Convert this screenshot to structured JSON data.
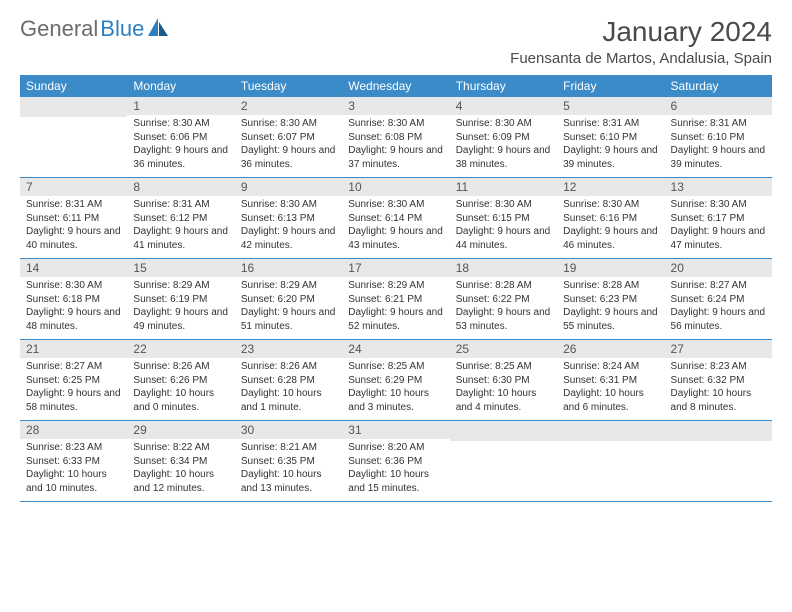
{
  "brand": {
    "part1": "General",
    "part2": "Blue"
  },
  "title": "January 2024",
  "location": "Fuensanta de Martos, Andalusia, Spain",
  "colors": {
    "header_bg": "#3b8bc9",
    "header_text": "#ffffff",
    "daynum_bg": "#e8e8e8",
    "row_border": "#3b8bc9",
    "logo_gray": "#6b6b6b",
    "logo_blue": "#2d7fc1"
  },
  "days_of_week": [
    "Sunday",
    "Monday",
    "Tuesday",
    "Wednesday",
    "Thursday",
    "Friday",
    "Saturday"
  ],
  "weeks": [
    [
      {
        "n": "",
        "lines": []
      },
      {
        "n": "1",
        "lines": [
          "Sunrise: 8:30 AM",
          "Sunset: 6:06 PM",
          "Daylight: 9 hours and 36 minutes."
        ]
      },
      {
        "n": "2",
        "lines": [
          "Sunrise: 8:30 AM",
          "Sunset: 6:07 PM",
          "Daylight: 9 hours and 36 minutes."
        ]
      },
      {
        "n": "3",
        "lines": [
          "Sunrise: 8:30 AM",
          "Sunset: 6:08 PM",
          "Daylight: 9 hours and 37 minutes."
        ]
      },
      {
        "n": "4",
        "lines": [
          "Sunrise: 8:30 AM",
          "Sunset: 6:09 PM",
          "Daylight: 9 hours and 38 minutes."
        ]
      },
      {
        "n": "5",
        "lines": [
          "Sunrise: 8:31 AM",
          "Sunset: 6:10 PM",
          "Daylight: 9 hours and 39 minutes."
        ]
      },
      {
        "n": "6",
        "lines": [
          "Sunrise: 8:31 AM",
          "Sunset: 6:10 PM",
          "Daylight: 9 hours and 39 minutes."
        ]
      }
    ],
    [
      {
        "n": "7",
        "lines": [
          "Sunrise: 8:31 AM",
          "Sunset: 6:11 PM",
          "Daylight: 9 hours and 40 minutes."
        ]
      },
      {
        "n": "8",
        "lines": [
          "Sunrise: 8:31 AM",
          "Sunset: 6:12 PM",
          "Daylight: 9 hours and 41 minutes."
        ]
      },
      {
        "n": "9",
        "lines": [
          "Sunrise: 8:30 AM",
          "Sunset: 6:13 PM",
          "Daylight: 9 hours and 42 minutes."
        ]
      },
      {
        "n": "10",
        "lines": [
          "Sunrise: 8:30 AM",
          "Sunset: 6:14 PM",
          "Daylight: 9 hours and 43 minutes."
        ]
      },
      {
        "n": "11",
        "lines": [
          "Sunrise: 8:30 AM",
          "Sunset: 6:15 PM",
          "Daylight: 9 hours and 44 minutes."
        ]
      },
      {
        "n": "12",
        "lines": [
          "Sunrise: 8:30 AM",
          "Sunset: 6:16 PM",
          "Daylight: 9 hours and 46 minutes."
        ]
      },
      {
        "n": "13",
        "lines": [
          "Sunrise: 8:30 AM",
          "Sunset: 6:17 PM",
          "Daylight: 9 hours and 47 minutes."
        ]
      }
    ],
    [
      {
        "n": "14",
        "lines": [
          "Sunrise: 8:30 AM",
          "Sunset: 6:18 PM",
          "Daylight: 9 hours and 48 minutes."
        ]
      },
      {
        "n": "15",
        "lines": [
          "Sunrise: 8:29 AM",
          "Sunset: 6:19 PM",
          "Daylight: 9 hours and 49 minutes."
        ]
      },
      {
        "n": "16",
        "lines": [
          "Sunrise: 8:29 AM",
          "Sunset: 6:20 PM",
          "Daylight: 9 hours and 51 minutes."
        ]
      },
      {
        "n": "17",
        "lines": [
          "Sunrise: 8:29 AM",
          "Sunset: 6:21 PM",
          "Daylight: 9 hours and 52 minutes."
        ]
      },
      {
        "n": "18",
        "lines": [
          "Sunrise: 8:28 AM",
          "Sunset: 6:22 PM",
          "Daylight: 9 hours and 53 minutes."
        ]
      },
      {
        "n": "19",
        "lines": [
          "Sunrise: 8:28 AM",
          "Sunset: 6:23 PM",
          "Daylight: 9 hours and 55 minutes."
        ]
      },
      {
        "n": "20",
        "lines": [
          "Sunrise: 8:27 AM",
          "Sunset: 6:24 PM",
          "Daylight: 9 hours and 56 minutes."
        ]
      }
    ],
    [
      {
        "n": "21",
        "lines": [
          "Sunrise: 8:27 AM",
          "Sunset: 6:25 PM",
          "Daylight: 9 hours and 58 minutes."
        ]
      },
      {
        "n": "22",
        "lines": [
          "Sunrise: 8:26 AM",
          "Sunset: 6:26 PM",
          "Daylight: 10 hours and 0 minutes."
        ]
      },
      {
        "n": "23",
        "lines": [
          "Sunrise: 8:26 AM",
          "Sunset: 6:28 PM",
          "Daylight: 10 hours and 1 minute."
        ]
      },
      {
        "n": "24",
        "lines": [
          "Sunrise: 8:25 AM",
          "Sunset: 6:29 PM",
          "Daylight: 10 hours and 3 minutes."
        ]
      },
      {
        "n": "25",
        "lines": [
          "Sunrise: 8:25 AM",
          "Sunset: 6:30 PM",
          "Daylight: 10 hours and 4 minutes."
        ]
      },
      {
        "n": "26",
        "lines": [
          "Sunrise: 8:24 AM",
          "Sunset: 6:31 PM",
          "Daylight: 10 hours and 6 minutes."
        ]
      },
      {
        "n": "27",
        "lines": [
          "Sunrise: 8:23 AM",
          "Sunset: 6:32 PM",
          "Daylight: 10 hours and 8 minutes."
        ]
      }
    ],
    [
      {
        "n": "28",
        "lines": [
          "Sunrise: 8:23 AM",
          "Sunset: 6:33 PM",
          "Daylight: 10 hours and 10 minutes."
        ]
      },
      {
        "n": "29",
        "lines": [
          "Sunrise: 8:22 AM",
          "Sunset: 6:34 PM",
          "Daylight: 10 hours and 12 minutes."
        ]
      },
      {
        "n": "30",
        "lines": [
          "Sunrise: 8:21 AM",
          "Sunset: 6:35 PM",
          "Daylight: 10 hours and 13 minutes."
        ]
      },
      {
        "n": "31",
        "lines": [
          "Sunrise: 8:20 AM",
          "Sunset: 6:36 PM",
          "Daylight: 10 hours and 15 minutes."
        ]
      },
      {
        "n": "",
        "lines": []
      },
      {
        "n": "",
        "lines": []
      },
      {
        "n": "",
        "lines": []
      }
    ]
  ]
}
